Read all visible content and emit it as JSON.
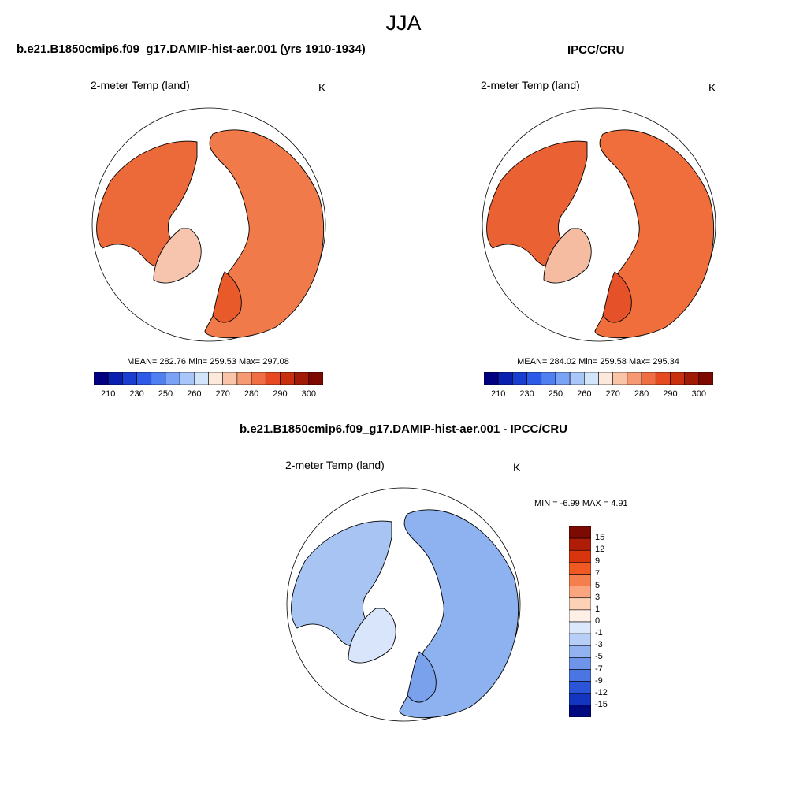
{
  "season": "JJA",
  "panels": [
    {
      "title": "b.e21.B1850cmip6.f09_g17.DAMIP-hist-aer.001 (yrs 1910-1934)",
      "variable": "2-meter Temp (land)",
      "units": "K",
      "stats": "MEAN= 282.76  Min= 259.53  Max= 297.08"
    },
    {
      "title": "IPCC/CRU",
      "variable": "2-meter Temp (land)",
      "units": "K",
      "stats": "MEAN= 284.02  Min= 259.58  Max= 295.34"
    }
  ],
  "difference": {
    "title": "b.e21.B1850cmip6.f09_g17.DAMIP-hist-aer.001 - IPCC/CRU",
    "variable": "2-meter Temp (land)",
    "units": "K",
    "stats": "MIN =  -6.99 MAX =   4.91"
  },
  "abs_colorbar": {
    "colors": [
      "#000080",
      "#0a1fb0",
      "#1a3fd0",
      "#2d5be8",
      "#4f7ff0",
      "#7aa3f5",
      "#a9c6f8",
      "#d3e5fb",
      "#fde9dc",
      "#f9c4a7",
      "#f59a72",
      "#f06e43",
      "#e54a20",
      "#c8300e",
      "#a11a06",
      "#7d0a02"
    ],
    "labels": [
      "210",
      "230",
      "250",
      "260",
      "270",
      "280",
      "290",
      "300"
    ]
  },
  "diff_colorbar": {
    "colors": [
      "#7d0a02",
      "#b01d06",
      "#d8340e",
      "#f05a22",
      "#f57f4c",
      "#f9a680",
      "#fcd1b6",
      "#fef0e6",
      "#dbe8fb",
      "#b7cff6",
      "#93b3f0",
      "#6f95ea",
      "#4a75e3",
      "#2a55d8",
      "#1435c0",
      "#000a80"
    ],
    "labels": [
      "15",
      "12",
      "9",
      "7",
      "5",
      "3",
      "1",
      "0",
      "-1",
      "-3",
      "-5",
      "-7",
      "-9",
      "-12",
      "-15"
    ]
  },
  "chart_data": [
    {
      "type": "heatmap",
      "title": "b.e21.B1850cmip6.f09_g17.DAMIP-hist-aer.001 (yrs 1910-1934)",
      "variable": "2-meter Temp (land)",
      "units": "K",
      "mean": 282.76,
      "min": 259.53,
      "max": 297.08,
      "colorbar_levels": [
        210,
        230,
        250,
        260,
        270,
        280,
        290,
        300
      ]
    },
    {
      "type": "heatmap",
      "title": "IPCC/CRU",
      "variable": "2-meter Temp (land)",
      "units": "K",
      "mean": 284.02,
      "min": 259.58,
      "max": 295.34,
      "colorbar_levels": [
        210,
        230,
        250,
        260,
        270,
        280,
        290,
        300
      ]
    },
    {
      "type": "heatmap",
      "title": "b.e21.B1850cmip6.f09_g17.DAMIP-hist-aer.001 - IPCC/CRU",
      "variable": "2-meter Temp (land)",
      "units": "K",
      "min": -6.99,
      "max": 4.91,
      "colorbar_levels": [
        15,
        12,
        9,
        7,
        5,
        3,
        1,
        0,
        -1,
        -3,
        -5,
        -7,
        -9,
        -12,
        -15
      ]
    }
  ]
}
